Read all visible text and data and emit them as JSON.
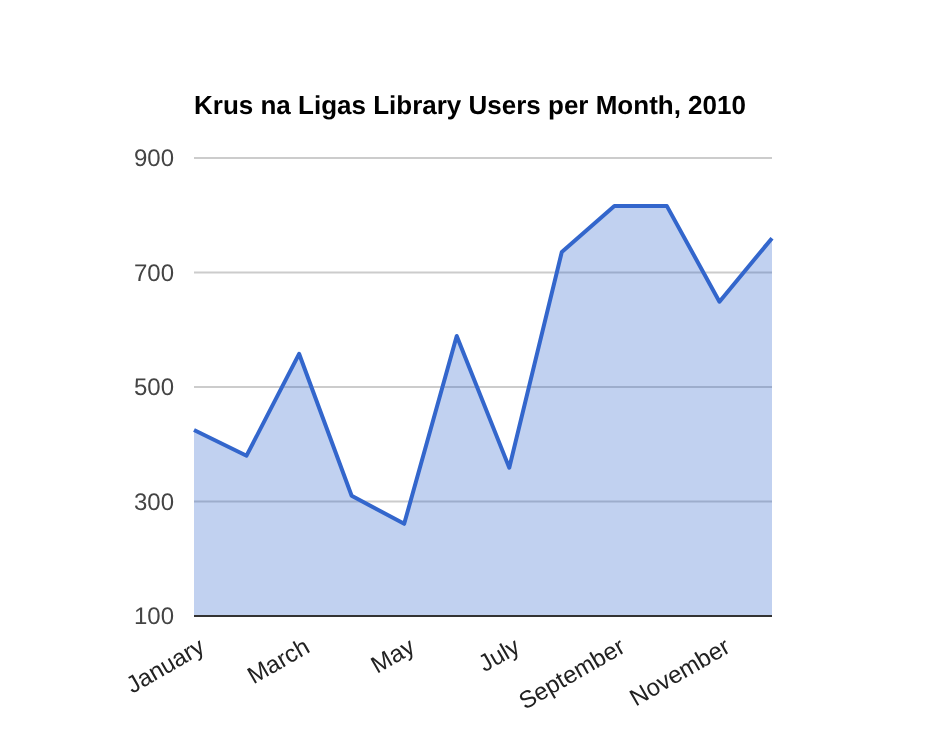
{
  "chart_data": {
    "type": "area",
    "title": "Krus na Ligas Library Users per Month, 2010",
    "categories": [
      "January",
      null,
      "March",
      null,
      "May",
      null,
      "July",
      null,
      "September",
      null,
      "November",
      null
    ],
    "series": [
      {
        "color": "#3366cc",
        "values": [
          425,
          380,
          558,
          310,
          261,
          589,
          359,
          736,
          816,
          816,
          649,
          760
        ]
      }
    ],
    "ylim": [
      100,
      900
    ],
    "yticks": [
      100,
      300,
      500,
      700,
      900
    ],
    "grid": "y"
  }
}
